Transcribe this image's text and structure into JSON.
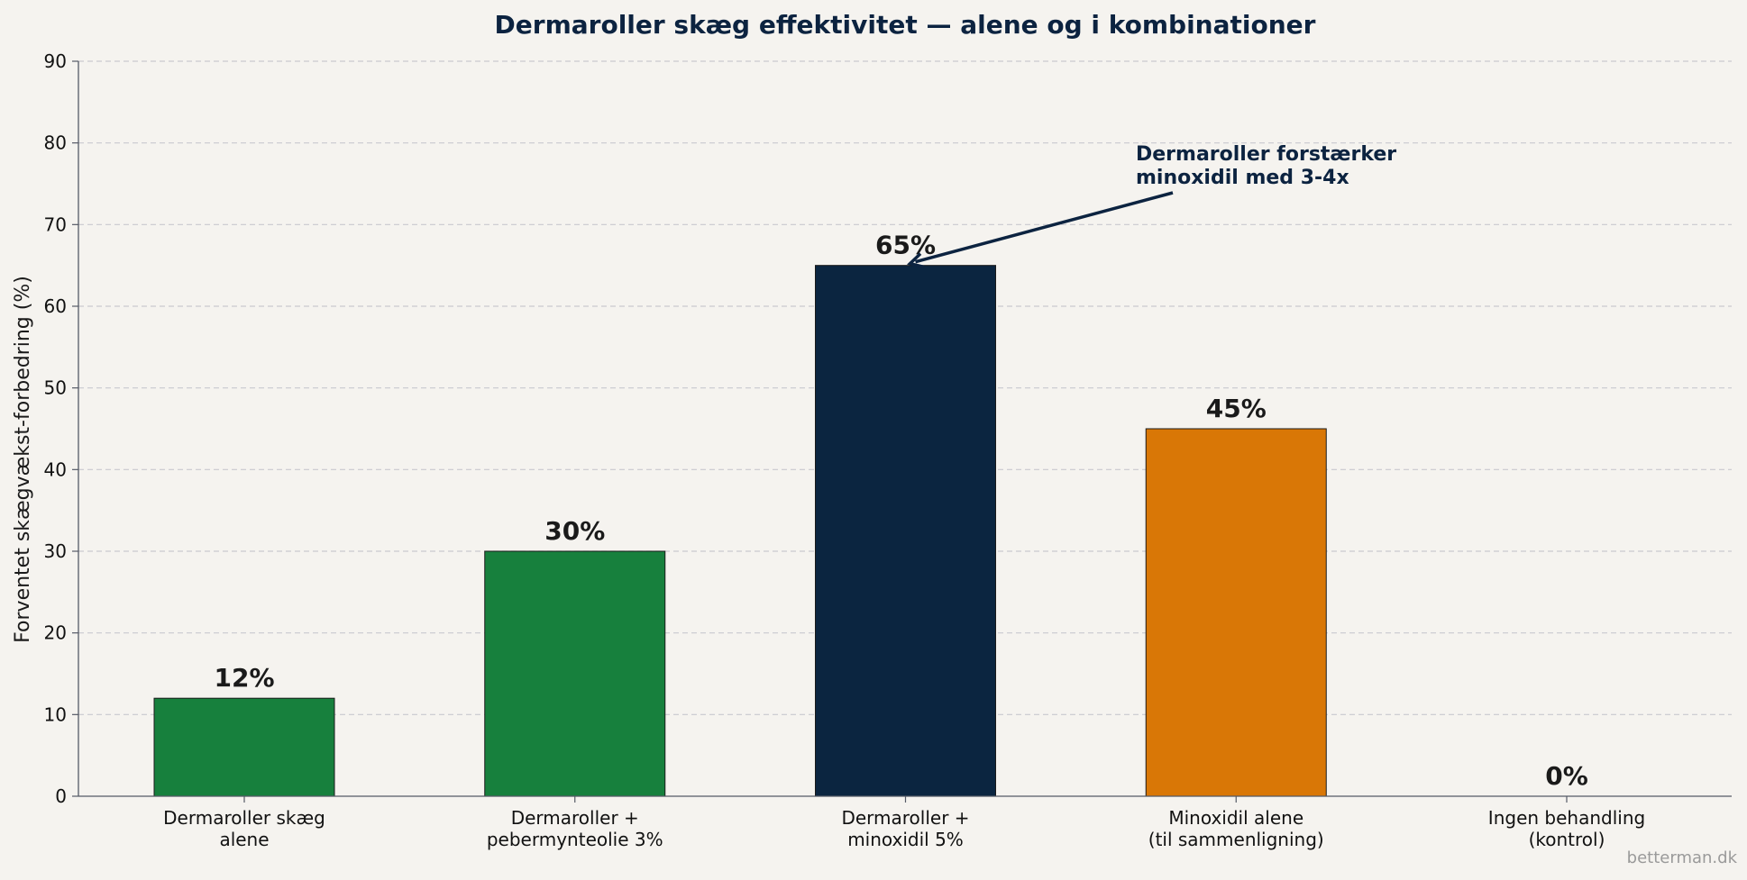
{
  "chart_data": {
    "type": "bar",
    "title": "Dermaroller skæg effektivitet — alene og i kombinationer",
    "ylabel": "Forventet skægvækst-forbedring (%)",
    "xlabel": "",
    "ylim": [
      0,
      90
    ],
    "yticks": [
      0,
      10,
      20,
      30,
      40,
      50,
      60,
      70,
      80,
      90
    ],
    "grid": "horizontal-dashed",
    "categories": [
      [
        "Dermaroller skæg",
        "alene"
      ],
      [
        "Dermaroller +",
        "pebermynteolie 3%"
      ],
      [
        "Dermaroller +",
        "minoxidil 5%"
      ],
      [
        "Minoxidil alene",
        "(til sammenligning)"
      ],
      [
        "Ingen behandling",
        "(kontrol)"
      ]
    ],
    "values": [
      12,
      30,
      65,
      45,
      0
    ],
    "value_labels": [
      "12%",
      "30%",
      "65%",
      "45%",
      "0%"
    ],
    "colors": [
      "#17803d",
      "#17803d",
      "#0b2540",
      "#d97706",
      "#9aa3ad"
    ],
    "annotation": {
      "lines": [
        "Dermaroller forstærker",
        "minoxidil med 3-4x"
      ],
      "points_to_category_index": 2,
      "points_to_value": 65
    },
    "watermark": "betterman.dk"
  }
}
